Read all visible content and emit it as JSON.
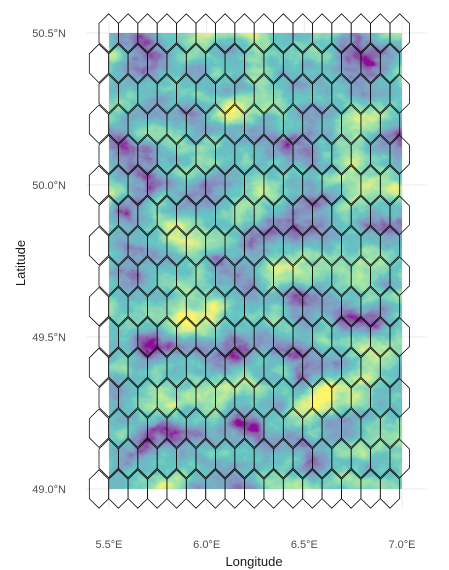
{
  "chart_data": {
    "type": "map",
    "title": "",
    "xlabel": "Longitude",
    "ylabel": "Latitude",
    "x_ticks": [
      {
        "value": 5.5,
        "label": "5.5°E"
      },
      {
        "value": 6.0,
        "label": "6.0°E"
      },
      {
        "value": 6.5,
        "label": "6.5°E"
      },
      {
        "value": 7.0,
        "label": "7.0°E"
      }
    ],
    "y_ticks": [
      {
        "value": 49.0,
        "label": "49.0°N"
      },
      {
        "value": 49.5,
        "label": "49.5°N"
      },
      {
        "value": 50.0,
        "label": "50.0°N"
      },
      {
        "value": 50.5,
        "label": "50.5°N"
      }
    ],
    "raster_extent": {
      "lon": [
        5.5,
        7.0
      ],
      "lat": [
        49.0,
        50.5
      ]
    },
    "palette": [
      "#440154",
      "#3b528b",
      "#21908c",
      "#5dc863",
      "#fde725"
    ],
    "hex_overlay": {
      "columns": 16,
      "rows": 16,
      "stroke": "#000000"
    },
    "grid": true
  }
}
